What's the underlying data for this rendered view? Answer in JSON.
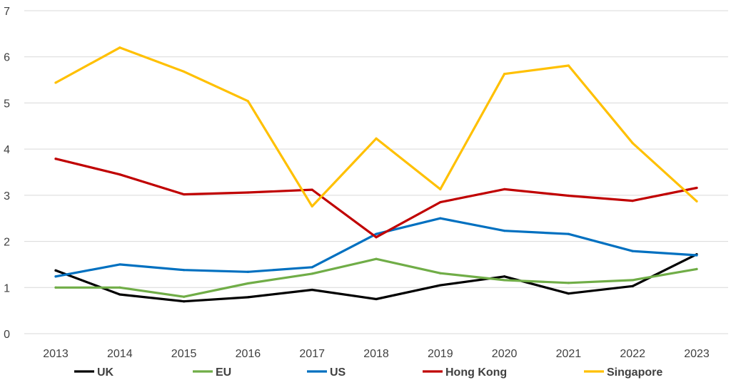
{
  "chart_data": {
    "type": "line",
    "x": [
      "2013",
      "2014",
      "2015",
      "2016",
      "2017",
      "2018",
      "2019",
      "2020",
      "2021",
      "2022",
      "2023"
    ],
    "y_ticks": [
      "0",
      "1",
      "2",
      "3",
      "4",
      "5",
      "6",
      "7"
    ],
    "ylim": [
      0,
      7
    ],
    "grid": "horizontal",
    "legend_position": "bottom",
    "series": [
      {
        "name": "UK",
        "color": "#000000",
        "values": [
          1.37,
          0.85,
          0.7,
          0.79,
          0.95,
          0.75,
          1.05,
          1.24,
          0.87,
          1.03,
          1.72
        ]
      },
      {
        "name": "EU",
        "color": "#70AD47",
        "values": [
          1.0,
          1.0,
          0.8,
          1.09,
          1.3,
          1.62,
          1.31,
          1.16,
          1.1,
          1.16,
          1.4
        ]
      },
      {
        "name": "US",
        "color": "#0070C0",
        "values": [
          1.24,
          1.5,
          1.38,
          1.34,
          1.44,
          2.16,
          2.5,
          2.23,
          2.16,
          1.79,
          1.7
        ]
      },
      {
        "name": "Hong Kong",
        "color": "#C00000",
        "values": [
          3.79,
          3.45,
          3.02,
          3.06,
          3.12,
          2.09,
          2.85,
          3.13,
          2.99,
          2.88,
          3.16
        ]
      },
      {
        "name": "Singapore",
        "color": "#FFC000",
        "values": [
          5.44,
          6.2,
          5.68,
          5.04,
          2.76,
          4.23,
          3.13,
          5.63,
          5.81,
          4.13,
          2.87
        ]
      }
    ]
  }
}
